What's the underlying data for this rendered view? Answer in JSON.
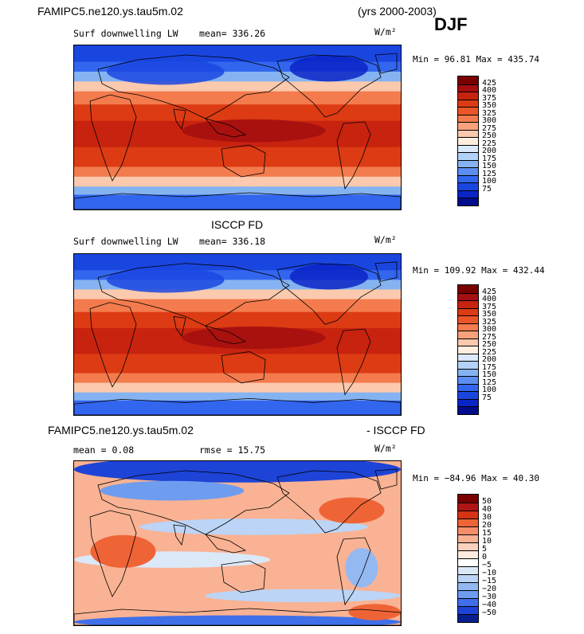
{
  "header": {
    "case": "FAMIPC5.ne120.ys.tau5m.02",
    "years": "(yrs 2000-2003)",
    "season": "DJF"
  },
  "panels": [
    {
      "title_left": "Surf downwelling LW",
      "mean_text": "mean= 336.26",
      "units": "W/m²",
      "minmax": "Min =  96.81 Max = 435.74",
      "colorbar_labels": [
        "425",
        "400",
        "375",
        "350",
        "325",
        "300",
        "275",
        "250",
        "225",
        "200",
        "175",
        "150",
        "125",
        "100",
        "75"
      ],
      "colors": [
        "#7a0000",
        "#a50f0f",
        "#c7230f",
        "#dc3b14",
        "#ea5628",
        "#f37b4d",
        "#f8a17c",
        "#fbc9ad",
        "#fdeee0",
        "#dae9fb",
        "#b3d2f7",
        "#85b3f1",
        "#5a8ef0",
        "#3366ee",
        "#1a46e0",
        "#0a25c7",
        "#000c8a"
      ]
    },
    {
      "heading": "ISCCP FD",
      "title_left": "Surf downwelling LW",
      "mean_text": "mean= 336.18",
      "units": "W/m²",
      "minmax": "Min = 109.92 Max = 432.44",
      "colorbar_labels": [
        "425",
        "400",
        "375",
        "350",
        "325",
        "300",
        "275",
        "250",
        "225",
        "200",
        "175",
        "150",
        "125",
        "100",
        "75"
      ],
      "colors": [
        "#7a0000",
        "#a50f0f",
        "#c7230f",
        "#dc3b14",
        "#ea5628",
        "#f37b4d",
        "#f8a17c",
        "#fbc9ad",
        "#fdeee0",
        "#dae9fb",
        "#b3d2f7",
        "#85b3f1",
        "#5a8ef0",
        "#3366ee",
        "#1a46e0",
        "#0a25c7",
        "#000c8a"
      ]
    },
    {
      "heading_left": "FAMIPC5.ne120.ys.tau5m.02",
      "heading_right": "- ISCCP FD",
      "mean_text": "mean =   0.08",
      "rmse_text": "rmse =  15.75",
      "units": "W/m²",
      "minmax": "Min = −84.96 Max =  40.30",
      "colorbar_labels": [
        "50",
        "40",
        "30",
        "20",
        "15",
        "10",
        "5",
        "0",
        "−5",
        "−10",
        "−15",
        "−20",
        "−30",
        "−40",
        "−50"
      ],
      "colors": [
        "#7a0000",
        "#b01515",
        "#d63214",
        "#ef6436",
        "#f58e68",
        "#f9b293",
        "#fbd2bd",
        "#fdebdf",
        "#ffffff",
        "#dbe8f8",
        "#bcd4f5",
        "#94b9f2",
        "#6e9cef",
        "#3f6fe9",
        "#1d44d6",
        "#08208f"
      ]
    }
  ]
}
